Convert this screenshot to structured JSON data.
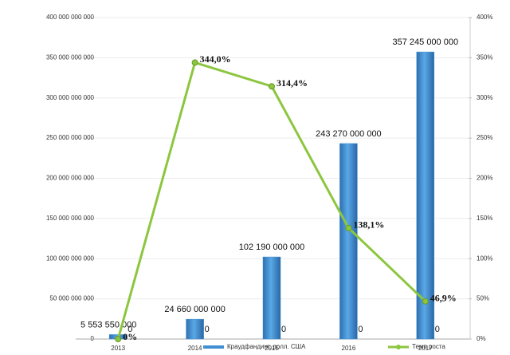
{
  "chart_data": {
    "type": "bar-line",
    "categories": [
      "2013",
      "2014",
      "2015",
      "2016",
      "2017"
    ],
    "series": [
      {
        "name": "Краудфандинг, долл. США",
        "type": "bar",
        "color": "#3f8fd2",
        "values": [
          5553550000,
          24660000000,
          102190000000,
          243270000000,
          357245000000
        ],
        "value_labels": [
          "5 553 550 000",
          "24 660 000 000",
          "102 190 000 000",
          "243 270 000 000",
          "357 245 000 000"
        ]
      },
      {
        "type": "bar",
        "color": "#c0504d",
        "values": [
          0,
          0,
          0,
          0,
          0
        ]
      },
      {
        "name": "Темп роста",
        "type": "line",
        "axis": "y2",
        "color": "#8cc63f",
        "values": [
          0,
          344.0,
          314.4,
          138.1,
          46.9
        ],
        "value_labels": [
          "0%",
          "344,0%",
          "314,4%",
          "138,1%",
          "46,9%"
        ]
      }
    ],
    "ylim": [
      0,
      400000000000
    ],
    "yticks": [
      {
        "value": 0,
        "label": "0"
      },
      {
        "value": 50000000000,
        "label": "50 000 000 000"
      },
      {
        "value": 100000000000,
        "label": "100 000 000 000"
      },
      {
        "value": 150000000000,
        "label": "150 000 000 000"
      },
      {
        "value": 200000000000,
        "label": "200 000 000 000"
      },
      {
        "value": 250000000000,
        "label": "250 000 000 000"
      },
      {
        "value": 300000000000,
        "label": "300 000 000 000"
      },
      {
        "value": 350000000000,
        "label": "350 000 000 000"
      },
      {
        "value": 400000000000,
        "label": "400 000 000 000"
      }
    ],
    "y2lim": [
      0,
      400
    ],
    "y2ticks": [
      {
        "value": 0,
        "label": "0%"
      },
      {
        "value": 50,
        "label": "50%"
      },
      {
        "value": 100,
        "label": "100%"
      },
      {
        "value": 150,
        "label": "150%"
      },
      {
        "value": 200,
        "label": "200%"
      },
      {
        "value": 250,
        "label": "250%"
      },
      {
        "value": 300,
        "label": "300%"
      },
      {
        "value": 350,
        "label": "350%"
      },
      {
        "value": 400,
        "label": "400%"
      }
    ],
    "grid": true,
    "legend": "bottom"
  }
}
